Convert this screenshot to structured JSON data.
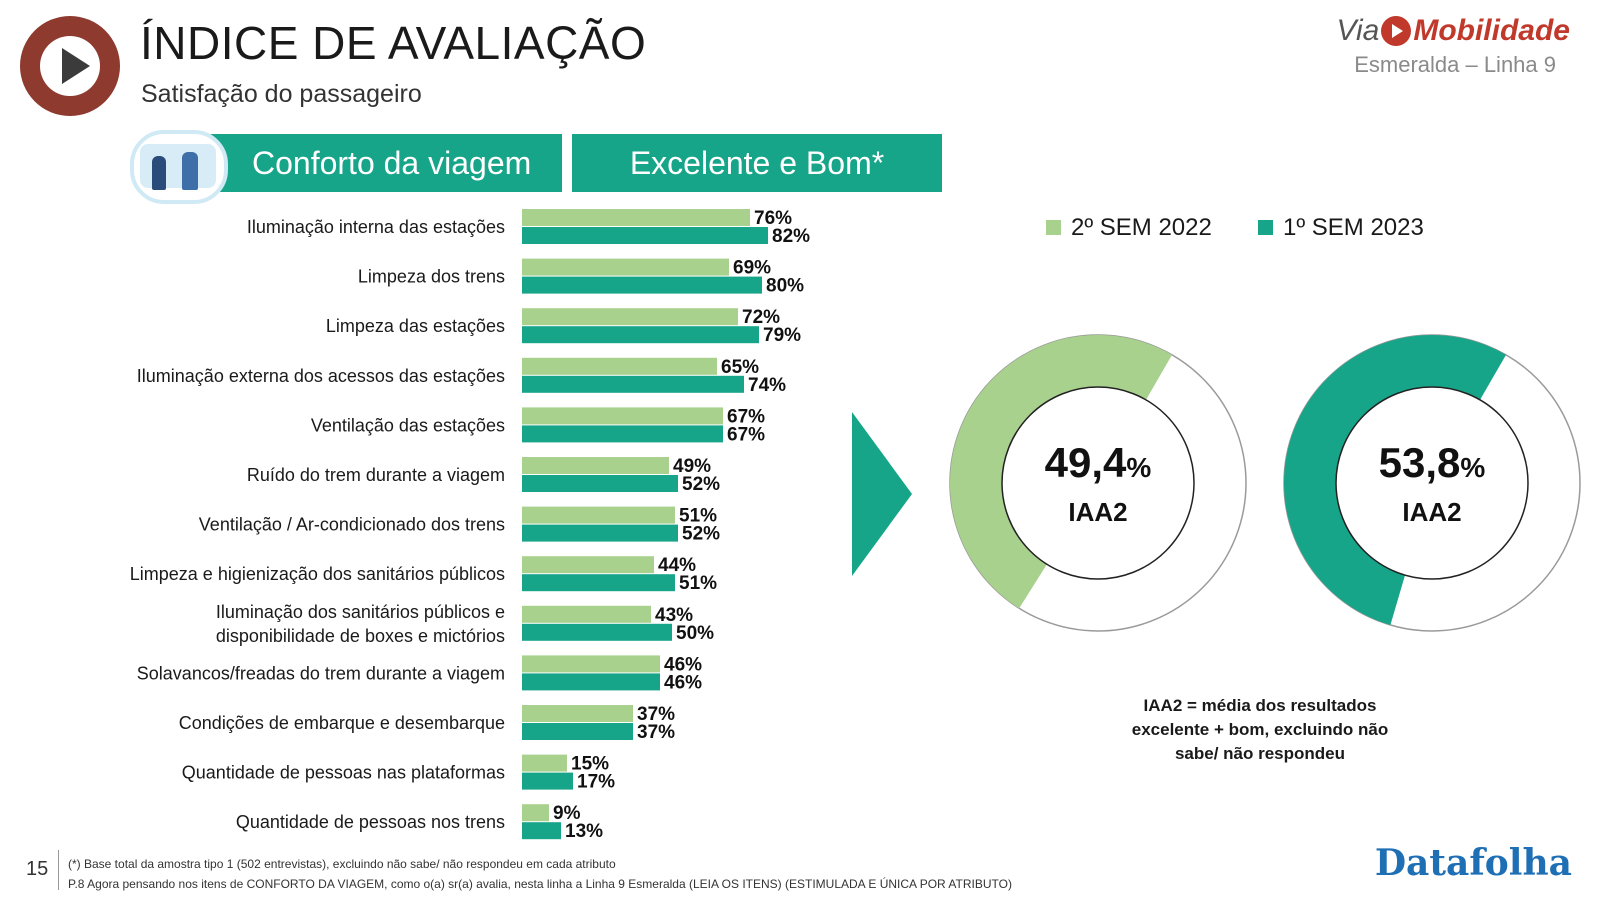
{
  "header": {
    "title": "ÍNDICE DE AVALIAÇÃO",
    "subtitle": "Satisfação do passageiro",
    "brand_via": "Via",
    "brand_name": "Mobilidade",
    "brand_line": "Esmeralda – Linha 9"
  },
  "banners": {
    "left": "Conforto da viagem",
    "right": "Excelente e Bom*"
  },
  "colors": {
    "series_2022": "#a9d18e",
    "series_2023": "#17a58a",
    "arrow": "#17a58a"
  },
  "chart_data": {
    "type": "bar",
    "orientation": "horizontal",
    "unit": "%",
    "categories": [
      [
        "Iluminação interna das estações"
      ],
      [
        "Limpeza dos trens"
      ],
      [
        "Limpeza das estações"
      ],
      [
        "Iluminação externa dos acessos das estações"
      ],
      [
        "Ventilação das estações"
      ],
      [
        "Ruído do trem durante a viagem"
      ],
      [
        "Ventilação / Ar-condicionado dos trens"
      ],
      [
        "Limpeza e higienização dos sanitários públicos"
      ],
      [
        "Iluminação dos sanitários públicos e",
        "disponibilidade de boxes e mictórios"
      ],
      [
        "Solavancos/freadas do trem durante a viagem"
      ],
      [
        "Condições de embarque e desembarque"
      ],
      [
        "Quantidade de pessoas nas plataformas"
      ],
      [
        "Quantidade de pessoas nos trens"
      ]
    ],
    "series": [
      {
        "name": "2º SEM 2022",
        "values": [
          76,
          69,
          72,
          65,
          67,
          49,
          51,
          44,
          43,
          46,
          37,
          15,
          9
        ]
      },
      {
        "name": "1º SEM 2023",
        "values": [
          82,
          80,
          79,
          74,
          67,
          52,
          52,
          51,
          50,
          46,
          37,
          17,
          13
        ]
      }
    ],
    "legend_position": "top-right",
    "grid": false
  },
  "donuts": [
    {
      "series": "2º SEM 2022",
      "value": 49.4,
      "value_text": "49,4",
      "unit": "%",
      "label": "IAA2"
    },
    {
      "series": "1º SEM 2023",
      "value": 53.8,
      "value_text": "53,8",
      "unit": "%",
      "label": "IAA2"
    }
  ],
  "note": "IAA2 = média dos resultados excelente + bom, excluindo não sabe/ não respondeu",
  "footer": {
    "page_number": "15",
    "line1": "(*) Base total da amostra tipo 1 (502 entrevistas), excluindo não sabe/ não respondeu em cada atributo",
    "line2": "P.8 Agora pensando nos itens de CONFORTO DA VIAGEM, como o(a) sr(a) avalia, nesta linha a Linha 9 Esmeralda (LEIA OS ITENS) (ESTIMULADA E ÚNICA POR ATRIBUTO)",
    "source": "Datafolha"
  }
}
